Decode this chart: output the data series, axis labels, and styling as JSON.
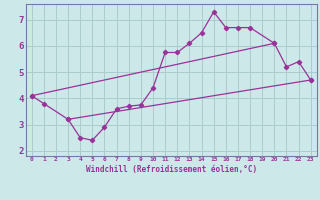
{
  "xlabel": "Windchill (Refroidissement éolien,°C)",
  "background_color": "#cce8e8",
  "grid_color": "#aacccc",
  "line_color": "#993399",
  "spine_color": "#7777aa",
  "xlim": [
    -0.5,
    23.5
  ],
  "ylim": [
    1.8,
    7.6
  ],
  "xticks": [
    0,
    1,
    2,
    3,
    4,
    5,
    6,
    7,
    8,
    9,
    10,
    11,
    12,
    13,
    14,
    15,
    16,
    17,
    18,
    19,
    20,
    21,
    22,
    23
  ],
  "yticks": [
    2,
    3,
    4,
    5,
    6,
    7
  ],
  "line1_x": [
    0,
    1,
    3,
    4,
    5,
    6,
    7,
    8,
    9,
    10,
    11,
    12,
    13,
    14,
    15,
    16,
    17,
    18,
    20
  ],
  "line1_y": [
    4.1,
    3.8,
    3.2,
    2.5,
    2.4,
    2.9,
    3.6,
    3.7,
    3.75,
    4.4,
    5.75,
    5.75,
    6.1,
    6.5,
    7.3,
    6.7,
    6.7,
    6.7,
    6.1
  ],
  "line2_x": [
    0,
    20,
    21,
    22,
    23
  ],
  "line2_y": [
    4.1,
    6.1,
    5.2,
    5.4,
    4.7
  ],
  "line3_x": [
    3,
    23
  ],
  "line3_y": [
    3.2,
    4.7
  ]
}
